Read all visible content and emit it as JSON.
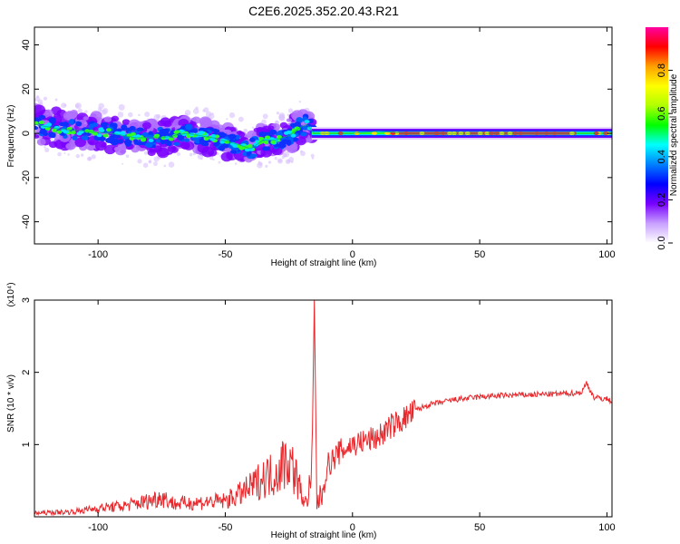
{
  "title": "C2E6.2025.352.20.43.R21",
  "chart_data": [
    {
      "type": "heatmap",
      "title": "C2E6.2025.352.20.43.R21",
      "xlabel": "Height of straight line (km)",
      "ylabel": "Frequency (Hz)",
      "xlim": [
        -125,
        102
      ],
      "ylim": [
        -50,
        48
      ],
      "xticks": [
        -100,
        -50,
        0,
        50,
        100
      ],
      "yticks": [
        -40,
        -20,
        0,
        20,
        40
      ],
      "colorbar": {
        "label": "Normalized spectral amplitude",
        "range": [
          0,
          1
        ],
        "ticks": [
          0.0,
          0.2,
          0.4,
          0.6,
          0.8
        ],
        "tick_labels": [
          "0.0",
          "0.2",
          "0.4",
          "0.6",
          "0.8"
        ],
        "colors": [
          "#ffffff",
          "#c8a0ff",
          "#7800ff",
          "#0000ff",
          "#0080ff",
          "#00ffff",
          "#00ff00",
          "#b0ff00",
          "#ffff00",
          "#ffa000",
          "#ff0000",
          "#ff00a0"
        ]
      },
      "ridge": {
        "x": [
          -125,
          -115,
          -105,
          -95,
          -85,
          -75,
          -65,
          -55,
          -45,
          -40,
          -35,
          -30,
          -25,
          -20,
          -18,
          -15,
          -10,
          -5,
          0,
          10,
          20,
          50,
          80,
          100,
          102
        ],
        "y": [
          4,
          2,
          1,
          0,
          -2,
          -2,
          0,
          -2,
          -5,
          -7,
          -3,
          -3,
          -1,
          3,
          4,
          0,
          0,
          0,
          0,
          1,
          0,
          0,
          0,
          0,
          0
        ]
      }
    },
    {
      "type": "line",
      "xlabel": "Height of straight line (km)",
      "ylabel": "SNR (10 * v/v)",
      "scale_label": "(x10⁴)",
      "xlim": [
        -125,
        102
      ],
      "ylim": [
        0,
        3
      ],
      "xticks": [
        -100,
        -50,
        0,
        50,
        100
      ],
      "yticks": [
        1,
        2,
        3
      ],
      "color": "#e8282c",
      "series": [
        {
          "name": "SNR",
          "x": [
            -125,
            -110,
            -100,
            -90,
            -80,
            -75,
            -70,
            -60,
            -50,
            -45,
            -40,
            -35,
            -30,
            -28,
            -25,
            -22,
            -20,
            -18,
            -16,
            -15,
            -14,
            -12,
            -10,
            -5,
            0,
            5,
            10,
            15,
            20,
            25,
            30,
            40,
            50,
            60,
            70,
            80,
            90,
            92,
            95,
            100,
            102
          ],
          "y": [
            0.05,
            0.07,
            0.12,
            0.15,
            0.22,
            0.28,
            0.18,
            0.2,
            0.22,
            0.3,
            0.4,
            0.55,
            0.6,
            0.72,
            0.8,
            0.55,
            0.3,
            0.18,
            0.6,
            3.0,
            0.2,
            0.3,
            0.7,
            0.9,
            1.0,
            1.05,
            1.1,
            1.25,
            1.35,
            1.48,
            1.55,
            1.62,
            1.66,
            1.68,
            1.69,
            1.7,
            1.72,
            1.85,
            1.65,
            1.63,
            1.6
          ]
        }
      ]
    }
  ]
}
